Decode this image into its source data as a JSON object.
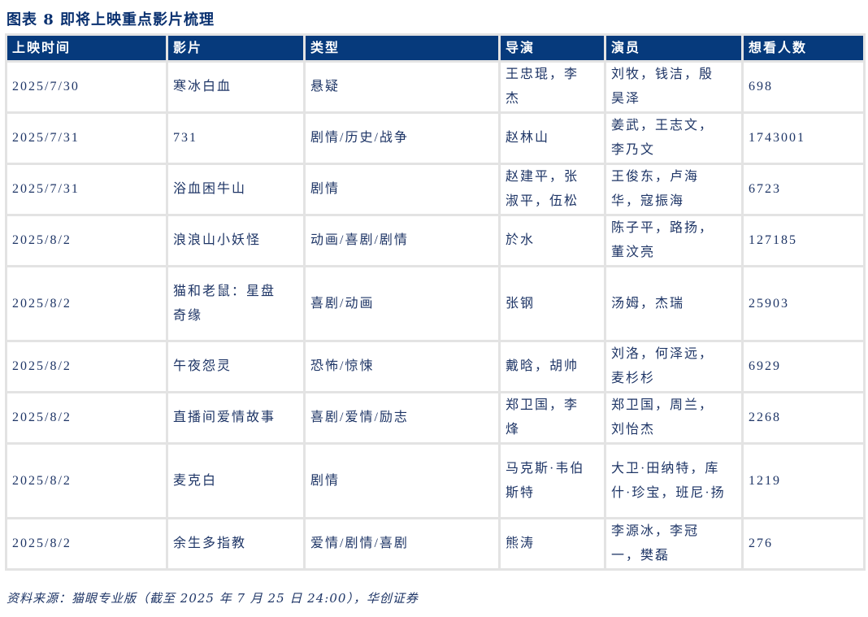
{
  "title": "图表 8  即将上映重点影片梳理",
  "table": {
    "headers": [
      "上映时间",
      "影片",
      "类型",
      "导演",
      "演员",
      "想看人数"
    ],
    "rows": [
      [
        "2025/7/30",
        "寒冰白血",
        "悬疑",
        "王忠琨，李杰",
        "刘牧，钱洁，殷昊泽",
        "698"
      ],
      [
        "2025/7/31",
        "731",
        "剧情/历史/战争",
        "赵林山",
        "姜武，王志文，李乃文",
        "1743001"
      ],
      [
        "2025/7/31",
        "浴血困牛山",
        "剧情",
        "赵建平，张淑平，伍松",
        "王俊东，卢海华，寇振海",
        "6723"
      ],
      [
        "2025/8/2",
        "浪浪山小妖怪",
        "动画/喜剧/剧情",
        "於水",
        "陈子平，路扬，董汶亮",
        "127185"
      ],
      [
        "2025/8/2",
        "猫和老鼠：星盘奇缘",
        "喜剧/动画",
        "张钢",
        "汤姆，杰瑞",
        "25903"
      ],
      [
        "2025/8/2",
        "午夜怨灵",
        "恐怖/惊悚",
        "戴晗，胡帅",
        "刘洛，何泽远，麦杉杉",
        "6929"
      ],
      [
        "2025/8/2",
        "直播间爱情故事",
        "喜剧/爱情/励志",
        "郑卫国，李烽",
        "郑卫国，周兰，刘怡杰",
        "2268"
      ],
      [
        "2025/8/2",
        "麦克白",
        "剧情",
        "马克斯·韦伯斯特",
        "大卫·田纳特，库什·珍宝，班尼·扬",
        "1219"
      ],
      [
        "2025/8/2",
        "余生多指教",
        "爱情/剧情/喜剧",
        "熊涛",
        "李源冰，李冠一，樊磊",
        "276"
      ]
    ]
  },
  "source": "资料来源：猫眼专业版（截至 2025 年 7 月 25 日 24:00），华创证券",
  "colors": {
    "header_bg": "#063a7c",
    "text": "#1e3566",
    "border": "#e3e3e3"
  }
}
